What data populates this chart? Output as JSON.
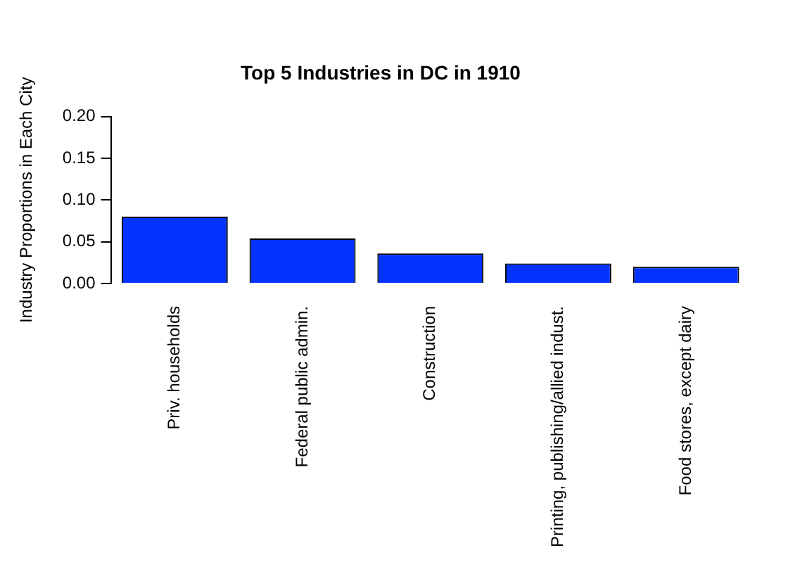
{
  "chart_data": {
    "type": "bar",
    "title": "Top 5 Industries in DC in 1910",
    "ylabel": "Industry Proportions in Each City",
    "categories": [
      "Priv. households",
      "Federal public admin.",
      "Construction",
      "Printing, publishing/allied indust.",
      "Food stores, except dairy"
    ],
    "values": [
      0.08,
      0.054,
      0.036,
      0.024,
      0.02
    ],
    "color": "#0433ff",
    "ylim": [
      0,
      0.2
    ],
    "yticks": [
      {
        "value": 0,
        "label": "0.00"
      },
      {
        "value": 0.05,
        "label": "0.05"
      },
      {
        "value": 0.1,
        "label": "0.10"
      },
      {
        "value": 0.15,
        "label": "0.15"
      },
      {
        "value": 0.2,
        "label": "0.20"
      }
    ],
    "grid": false,
    "legend": false
  }
}
